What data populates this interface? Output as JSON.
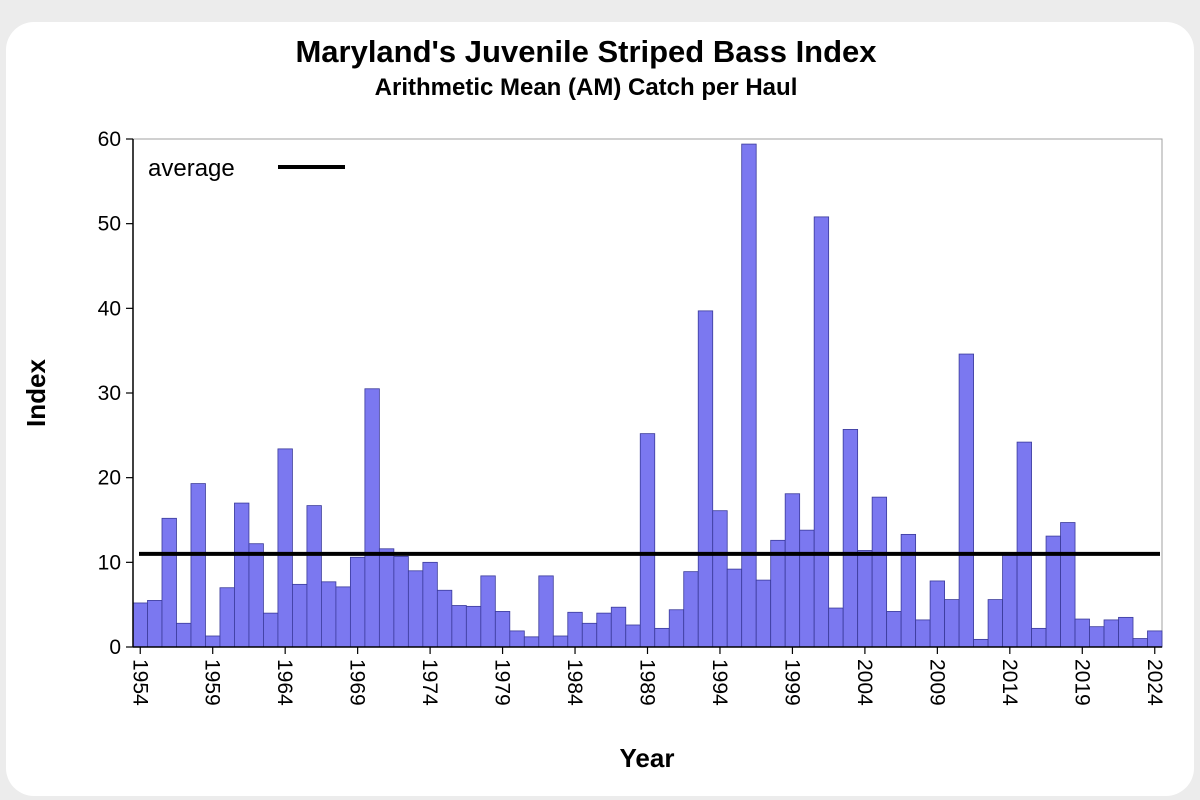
{
  "chart_data": {
    "type": "bar",
    "title": "Maryland's Juvenile Striped Bass Index",
    "subtitle": "Arithmetic Mean (AM) Catch per Haul",
    "xlabel": "Year",
    "ylabel": "Index",
    "ylim": [
      0,
      60
    ],
    "yticks": [
      0,
      10,
      20,
      30,
      40,
      50,
      60
    ],
    "xtick_labels": [
      "1954",
      "1959",
      "1964",
      "1969",
      "1974",
      "1979",
      "1984",
      "1989",
      "1994",
      "1999",
      "2004",
      "2009",
      "2014",
      "2019",
      "2024"
    ],
    "bar_color": "#7b78f0",
    "bar_edge_color": "#3a3a9a",
    "grid": false,
    "legend": {
      "position": "top-left",
      "entries": [
        {
          "label": "average",
          "type": "line",
          "color": "#000000"
        }
      ]
    },
    "average": 11.0,
    "categories": [
      1954,
      1955,
      1956,
      1957,
      1958,
      1959,
      1960,
      1961,
      1962,
      1963,
      1964,
      1965,
      1966,
      1967,
      1968,
      1969,
      1970,
      1971,
      1972,
      1973,
      1974,
      1975,
      1976,
      1977,
      1978,
      1979,
      1980,
      1981,
      1982,
      1983,
      1984,
      1985,
      1986,
      1987,
      1988,
      1989,
      1990,
      1991,
      1992,
      1993,
      1994,
      1995,
      1996,
      1997,
      1998,
      1999,
      2000,
      2001,
      2002,
      2003,
      2004,
      2005,
      2006,
      2007,
      2008,
      2009,
      2010,
      2011,
      2012,
      2013,
      2014,
      2015,
      2016,
      2017,
      2018,
      2019,
      2020,
      2021,
      2022,
      2023,
      2024
    ],
    "values": [
      5.2,
      5.5,
      15.2,
      2.8,
      19.3,
      1.3,
      7.0,
      17.0,
      12.2,
      4.0,
      23.4,
      7.4,
      16.7,
      7.7,
      7.1,
      10.6,
      30.5,
      11.6,
      10.7,
      9.0,
      10.0,
      6.7,
      4.9,
      4.8,
      8.4,
      4.2,
      1.9,
      1.2,
      8.4,
      1.3,
      4.1,
      2.8,
      4.0,
      4.7,
      2.6,
      25.2,
      2.2,
      4.4,
      8.9,
      39.7,
      16.1,
      9.2,
      59.4,
      7.9,
      12.6,
      18.1,
      13.8,
      50.8,
      4.6,
      25.7,
      11.4,
      17.7,
      4.2,
      13.3,
      3.2,
      7.8,
      5.6,
      34.6,
      0.9,
      5.6,
      11.1,
      24.2,
      2.2,
      13.1,
      14.7,
      3.3,
      2.4,
      3.2,
      3.5,
      1.0,
      1.9
    ]
  }
}
